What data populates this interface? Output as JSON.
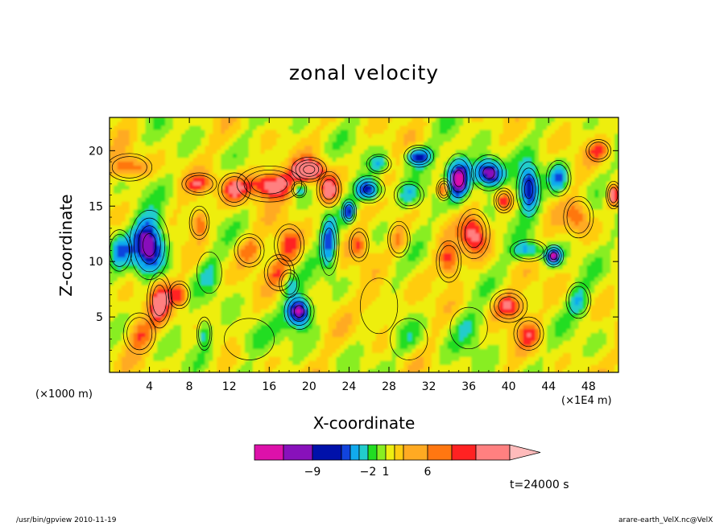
{
  "chart_data": {
    "type": "heatmap",
    "title": "zonal velocity",
    "xlabel": "X-coordinate",
    "ylabel": "Z-coordinate",
    "x_unit_left": "(×1000 m)",
    "x_unit_right": "(×1E4 m)",
    "x_ticks": [
      4,
      8,
      12,
      16,
      20,
      24,
      28,
      32,
      36,
      40,
      44,
      48
    ],
    "y_ticks": [
      5,
      10,
      15,
      20
    ],
    "xlim": [
      0,
      51
    ],
    "ylim": [
      0,
      23
    ],
    "colorbar": {
      "colors": [
        "#dd11aa",
        "#8811bb",
        "#0011aa",
        "#1144dd",
        "#11aaee",
        "#22cccc",
        "#22dd22",
        "#88ee22",
        "#eeee11",
        "#ffcc11",
        "#ffaa22",
        "#ff7711",
        "#ff2222",
        "#ff8080",
        "#ffbbbb"
      ],
      "labels": [
        {
          "text": "−9",
          "index": 1
        },
        {
          "text": "−2",
          "index": 5
        },
        {
          "text": "1",
          "index": 7
        },
        {
          "text": "6",
          "index": 10
        }
      ]
    },
    "features": [
      {
        "x": 4,
        "z": 11.5,
        "value": -8,
        "rx": 1.6,
        "rz": 2.5
      },
      {
        "x": 5,
        "z": 6.5,
        "value": 5,
        "rx": 1.0,
        "rz": 2.0
      },
      {
        "x": 2,
        "z": 18.5,
        "value": 4,
        "rx": 1.8,
        "rz": 1.0
      },
      {
        "x": 1,
        "z": 11,
        "value": -3,
        "rx": 1.0,
        "rz": 1.5
      },
      {
        "x": 3,
        "z": 3.5,
        "value": 3,
        "rx": 1.3,
        "rz": 1.5
      },
      {
        "x": 9,
        "z": 17,
        "value": 3,
        "rx": 1.4,
        "rz": 0.8
      },
      {
        "x": 9,
        "z": 13.5,
        "value": 4,
        "rx": 0.8,
        "rz": 1.2
      },
      {
        "x": 10,
        "z": 9,
        "value": -2,
        "rx": 1.0,
        "rz": 1.5
      },
      {
        "x": 9.5,
        "z": 3.5,
        "value": -3,
        "rx": 0.6,
        "rz": 1.2
      },
      {
        "x": 7,
        "z": 7,
        "value": 4,
        "rx": 0.9,
        "rz": 1.0
      },
      {
        "x": 12.5,
        "z": 16.5,
        "value": 4,
        "rx": 1.3,
        "rz": 1.2
      },
      {
        "x": 16,
        "z": 17,
        "value": 6,
        "rx": 2.6,
        "rz": 1.3
      },
      {
        "x": 20,
        "z": 18.3,
        "value": 8,
        "rx": 1.4,
        "rz": 0.9
      },
      {
        "x": 22,
        "z": 16.5,
        "value": 6,
        "rx": 1.0,
        "rz": 1.3
      },
      {
        "x": 19,
        "z": 16.5,
        "value": -4,
        "rx": 0.6,
        "rz": 0.6
      },
      {
        "x": 14,
        "z": 11,
        "value": 3,
        "rx": 1.2,
        "rz": 1.2
      },
      {
        "x": 18,
        "z": 11.5,
        "value": 4,
        "rx": 1.2,
        "rz": 1.5
      },
      {
        "x": 17,
        "z": 9,
        "value": 3,
        "rx": 1.2,
        "rz": 1.3
      },
      {
        "x": 19,
        "z": 5.5,
        "value": -8,
        "rx": 1.2,
        "rz": 1.3
      },
      {
        "x": 18,
        "z": 8,
        "value": -3,
        "rx": 0.8,
        "rz": 1.0
      },
      {
        "x": 22,
        "z": 11.5,
        "value": -5,
        "rx": 0.8,
        "rz": 2.2
      },
      {
        "x": 24,
        "z": 14.5,
        "value": -5,
        "rx": 0.6,
        "rz": 0.9
      },
      {
        "x": 25,
        "z": 11.5,
        "value": 3,
        "rx": 0.8,
        "rz": 1.2
      },
      {
        "x": 26,
        "z": 16.5,
        "value": -7,
        "rx": 1.3,
        "rz": 1.0
      },
      {
        "x": 27,
        "z": 18.8,
        "value": -3,
        "rx": 1.0,
        "rz": 0.7
      },
      {
        "x": 30,
        "z": 16,
        "value": -3,
        "rx": 1.2,
        "rz": 1.0
      },
      {
        "x": 31,
        "z": 19.5,
        "value": -6,
        "rx": 1.2,
        "rz": 0.8
      },
      {
        "x": 29,
        "z": 12,
        "value": 3,
        "rx": 0.9,
        "rz": 1.3
      },
      {
        "x": 33.5,
        "z": 16.5,
        "value": 6,
        "rx": 0.6,
        "rz": 0.8
      },
      {
        "x": 35,
        "z": 17.5,
        "value": -8,
        "rx": 1.2,
        "rz": 1.8
      },
      {
        "x": 36.5,
        "z": 12.5,
        "value": 5,
        "rx": 1.3,
        "rz": 1.8
      },
      {
        "x": 34,
        "z": 10,
        "value": 4,
        "rx": 1.0,
        "rz": 1.5
      },
      {
        "x": 38,
        "z": 18,
        "value": -9,
        "rx": 1.4,
        "rz": 1.3
      },
      {
        "x": 39.5,
        "z": 15.5,
        "value": 5,
        "rx": 0.8,
        "rz": 0.9
      },
      {
        "x": 42,
        "z": 16.5,
        "value": -7,
        "rx": 1.0,
        "rz": 2.0
      },
      {
        "x": 42,
        "z": 11,
        "value": -4,
        "rx": 1.5,
        "rz": 0.8
      },
      {
        "x": 44.5,
        "z": 10.5,
        "value": -7,
        "rx": 0.8,
        "rz": 0.8
      },
      {
        "x": 45,
        "z": 17.5,
        "value": -4,
        "rx": 1.0,
        "rz": 1.3
      },
      {
        "x": 40,
        "z": 6,
        "value": 5,
        "rx": 1.5,
        "rz": 1.2
      },
      {
        "x": 42,
        "z": 3.5,
        "value": 3,
        "rx": 1.2,
        "rz": 1.2
      },
      {
        "x": 47,
        "z": 6.5,
        "value": -3,
        "rx": 1.0,
        "rz": 1.3
      },
      {
        "x": 47,
        "z": 14,
        "value": 3,
        "rx": 1.2,
        "rz": 1.5
      },
      {
        "x": 49,
        "z": 20,
        "value": 3,
        "rx": 1.0,
        "rz": 0.8
      },
      {
        "x": 50.5,
        "z": 16,
        "value": 6,
        "rx": 0.6,
        "rz": 1.0
      },
      {
        "x": 27,
        "z": 6,
        "value": 2,
        "rx": 1.5,
        "rz": 2.0
      },
      {
        "x": 30,
        "z": 3,
        "value": -2,
        "rx": 1.5,
        "rz": 1.5
      },
      {
        "x": 14,
        "z": 3,
        "value": -2,
        "rx": 2.0,
        "rz": 1.5
      },
      {
        "x": 36,
        "z": 4,
        "value": -2,
        "rx": 1.5,
        "rz": 1.5
      }
    ]
  },
  "time_label": "t=24000 s",
  "footer_left": "/usr/bin/gpview  2010-11-19",
  "footer_right": "arare-earth_VelX.nc@VelX"
}
